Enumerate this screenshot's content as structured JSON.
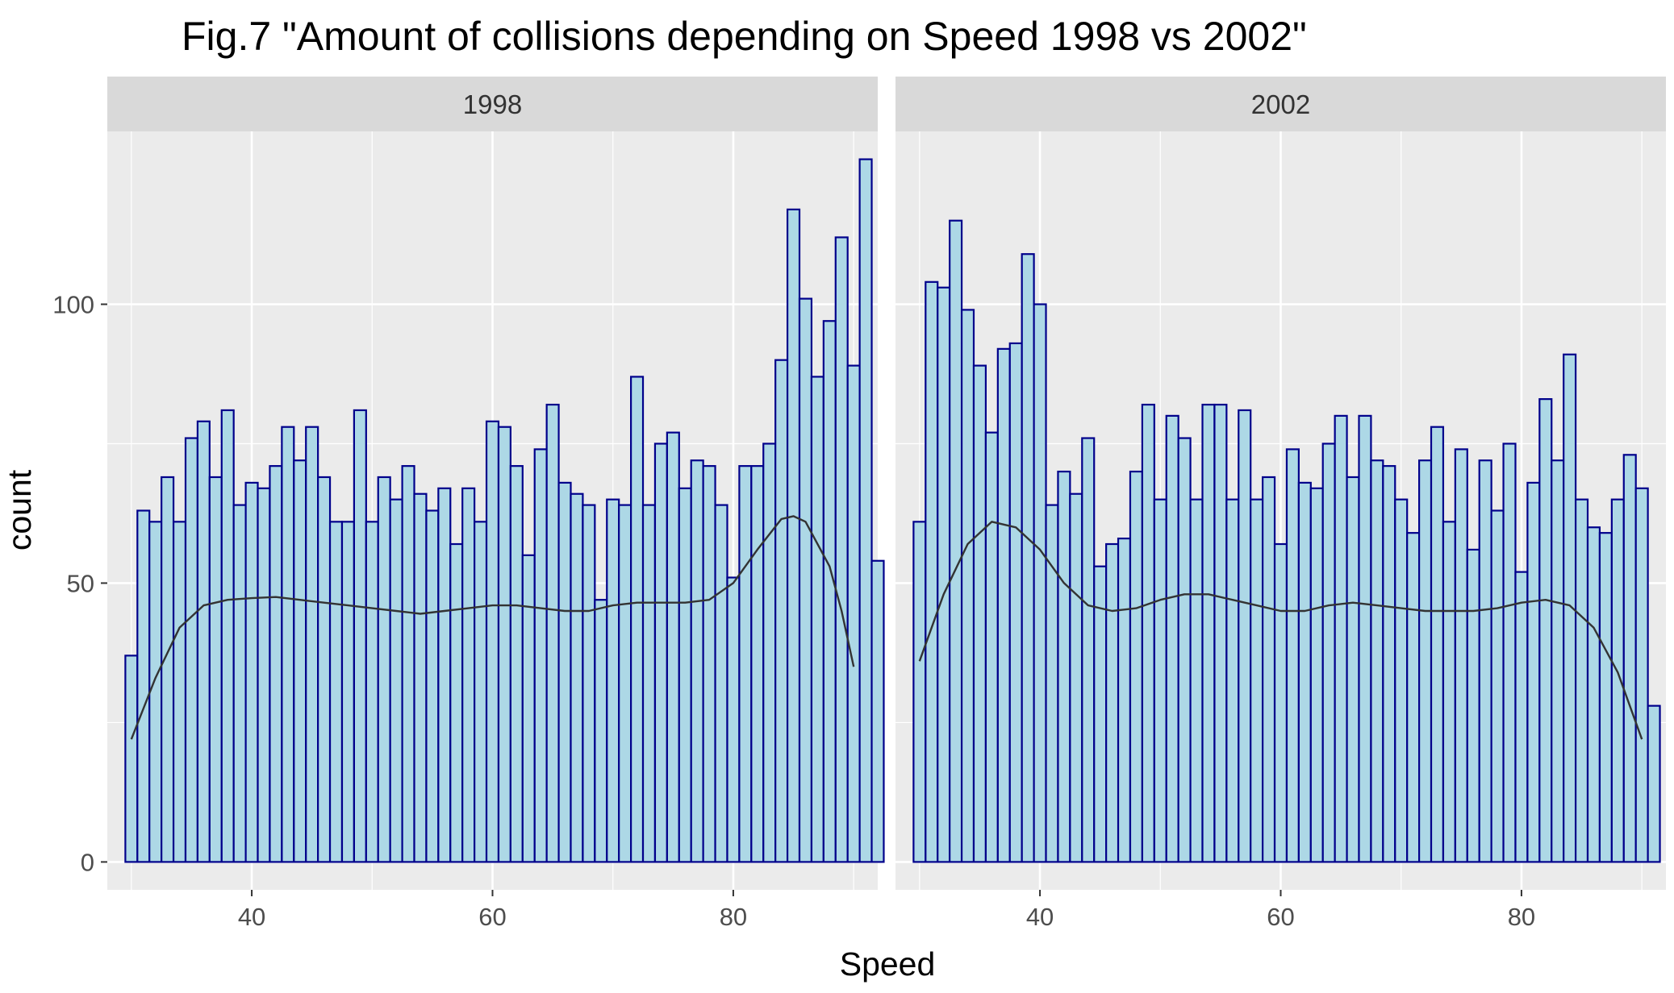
{
  "chart_data": {
    "type": "bar",
    "title": "Fig.7 \"Amount of collisions depending on Speed 1998 vs 2002\"",
    "xlabel": "Speed",
    "ylabel": "count",
    "x_ticks": [
      40,
      60,
      80
    ],
    "y_ticks": [
      0,
      50,
      100
    ],
    "xlim": [
      28,
      92
    ],
    "ylim": [
      -5,
      131
    ],
    "bin_start": 30,
    "bin_width": 1,
    "grid": true,
    "colors": {
      "fill": "#add8e6",
      "outline": "#00008b",
      "smooth": "#333333",
      "panel": "#ebebeb",
      "strip": "#d9d9d9",
      "grid": "#ffffff"
    },
    "panels": [
      {
        "strip": "1998",
        "counts": [
          37,
          63,
          61,
          69,
          61,
          76,
          79,
          69,
          81,
          64,
          68,
          67,
          71,
          78,
          72,
          78,
          69,
          61,
          61,
          81,
          61,
          69,
          65,
          71,
          66,
          63,
          67,
          57,
          67,
          61,
          79,
          78,
          71,
          55,
          74,
          82,
          68,
          66,
          64,
          47,
          65,
          64,
          87,
          64,
          75,
          77,
          67,
          72,
          71,
          64,
          51,
          71,
          71,
          75,
          90,
          117,
          101,
          87,
          97,
          112,
          89,
          126,
          54
        ],
        "smooth": [
          [
            30,
            22
          ],
          [
            32,
            33
          ],
          [
            34,
            42
          ],
          [
            36,
            46
          ],
          [
            38,
            47
          ],
          [
            40,
            47.3
          ],
          [
            42,
            47.5
          ],
          [
            44,
            47
          ],
          [
            46,
            46.5
          ],
          [
            48,
            46
          ],
          [
            50,
            45.5
          ],
          [
            52,
            45
          ],
          [
            54,
            44.5
          ],
          [
            56,
            45
          ],
          [
            58,
            45.5
          ],
          [
            60,
            46
          ],
          [
            62,
            46
          ],
          [
            64,
            45.5
          ],
          [
            66,
            45
          ],
          [
            68,
            45
          ],
          [
            70,
            46
          ],
          [
            72,
            46.5
          ],
          [
            74,
            46.5
          ],
          [
            76,
            46.5
          ],
          [
            78,
            47
          ],
          [
            80,
            50
          ],
          [
            82,
            56
          ],
          [
            84,
            61.5
          ],
          [
            85,
            62
          ],
          [
            86,
            61
          ],
          [
            88,
            53
          ],
          [
            89,
            45
          ],
          [
            90,
            35
          ]
        ]
      },
      {
        "strip": "2002",
        "counts": [
          61,
          104,
          103,
          115,
          99,
          89,
          77,
          92,
          93,
          109,
          100,
          64,
          70,
          66,
          76,
          53,
          57,
          58,
          70,
          82,
          65,
          80,
          76,
          65,
          82,
          82,
          65,
          81,
          65,
          69,
          57,
          74,
          68,
          67,
          75,
          80,
          69,
          80,
          72,
          71,
          65,
          59,
          72,
          78,
          61,
          74,
          56,
          72,
          63,
          75,
          52,
          68,
          83,
          72,
          91,
          65,
          60,
          59,
          65,
          73,
          67,
          28
        ],
        "smooth": [
          [
            30,
            36
          ],
          [
            32,
            48
          ],
          [
            34,
            57
          ],
          [
            36,
            61
          ],
          [
            38,
            60
          ],
          [
            40,
            56
          ],
          [
            42,
            50
          ],
          [
            44,
            46
          ],
          [
            46,
            45
          ],
          [
            48,
            45.5
          ],
          [
            50,
            47
          ],
          [
            52,
            48
          ],
          [
            54,
            48
          ],
          [
            56,
            47
          ],
          [
            58,
            46
          ],
          [
            60,
            45
          ],
          [
            62,
            45
          ],
          [
            64,
            46
          ],
          [
            66,
            46.5
          ],
          [
            68,
            46
          ],
          [
            70,
            45.5
          ],
          [
            72,
            45
          ],
          [
            74,
            45
          ],
          [
            76,
            45
          ],
          [
            78,
            45.5
          ],
          [
            80,
            46.5
          ],
          [
            82,
            47
          ],
          [
            84,
            46
          ],
          [
            86,
            42
          ],
          [
            88,
            34
          ],
          [
            90,
            22
          ]
        ]
      }
    ]
  }
}
